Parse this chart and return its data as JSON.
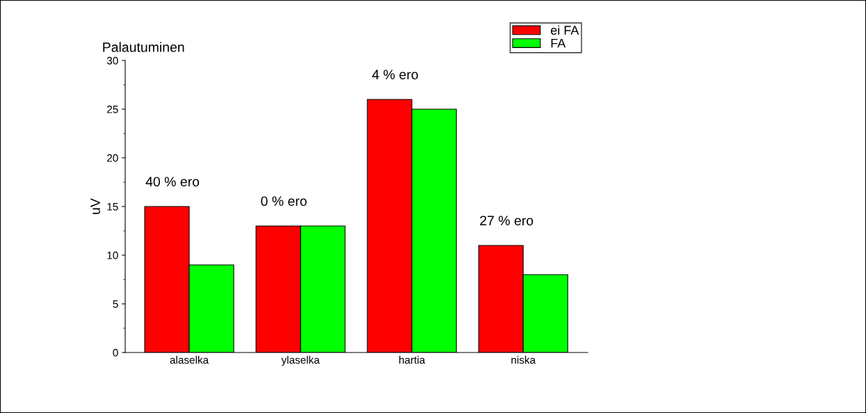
{
  "chart_data": {
    "type": "bar",
    "title": "Palautuminen",
    "ylabel": "uV",
    "categories": [
      "alaselka",
      "ylaselka",
      "hartia",
      "niska"
    ],
    "series": [
      {
        "name": "ei FA",
        "color": "#ff0000",
        "values": [
          15,
          13,
          26,
          11
        ]
      },
      {
        "name": "FA",
        "color": "#00ff00",
        "values": [
          9,
          13,
          25,
          8
        ]
      }
    ],
    "annotations": [
      "40 % ero",
      "0 % ero",
      "4 % ero",
      "27 % ero"
    ],
    "ylim": [
      0,
      30
    ],
    "yticks": [
      0,
      5,
      10,
      15,
      20,
      25,
      30
    ],
    "grid": false,
    "legend": "top right"
  }
}
